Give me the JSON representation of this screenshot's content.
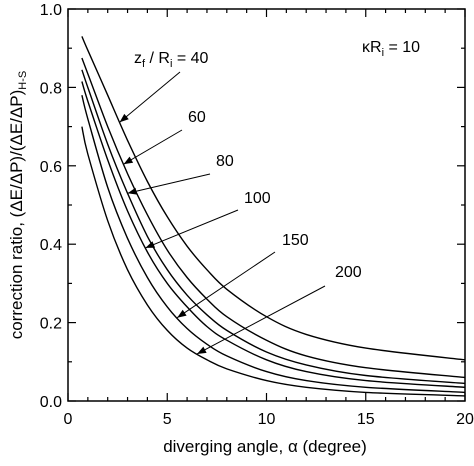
{
  "chart_data": {
    "type": "line",
    "xlabel": {
      "main": "diverging angle, ",
      "greek": "α",
      "unit": " (degree)"
    },
    "ylabel": {
      "part1": "correction ratio, (ΔE/ΔP)/(ΔE/ΔP)",
      "sub": "H-S"
    },
    "xlim": [
      0,
      20
    ],
    "ylim": [
      0,
      1.0
    ],
    "xticks": [
      "0",
      "5",
      "10",
      "15",
      "20"
    ],
    "yticks": [
      "0.0",
      "0.2",
      "0.4",
      "0.6",
      "0.8",
      "1.0"
    ],
    "xtick_values": [
      0,
      5,
      10,
      15,
      20
    ],
    "ytick_values": [
      0,
      0.2,
      0.4,
      0.6,
      0.8,
      1.0
    ],
    "grid": false,
    "parameter": {
      "kappa": "κ",
      "R": "R",
      "sub": "i",
      "rest": " = 10"
    },
    "series": [
      {
        "name": "40",
        "x": [
          0.7,
          1,
          2,
          3,
          4,
          5,
          6,
          7,
          8,
          10,
          12,
          15,
          20
        ],
        "y": [
          0.93,
          0.895,
          0.78,
          0.665,
          0.56,
          0.47,
          0.395,
          0.335,
          0.285,
          0.215,
          0.17,
          0.135,
          0.105
        ]
      },
      {
        "name": "60",
        "x": [
          0.7,
          1,
          2,
          3,
          4,
          5,
          6,
          7,
          8,
          10,
          12,
          15,
          20
        ],
        "y": [
          0.875,
          0.835,
          0.7,
          0.58,
          0.475,
          0.385,
          0.315,
          0.26,
          0.215,
          0.155,
          0.115,
          0.085,
          0.06
        ]
      },
      {
        "name": "80",
        "x": [
          0.7,
          1,
          2,
          3,
          4,
          5,
          6,
          7,
          8,
          10,
          12,
          15,
          20
        ],
        "y": [
          0.845,
          0.8,
          0.655,
          0.53,
          0.42,
          0.335,
          0.27,
          0.22,
          0.18,
          0.125,
          0.092,
          0.065,
          0.045
        ]
      },
      {
        "name": "100",
        "x": [
          0.7,
          1,
          2,
          3,
          4,
          5,
          6,
          7,
          8,
          10,
          12,
          15,
          20
        ],
        "y": [
          0.815,
          0.765,
          0.615,
          0.485,
          0.38,
          0.3,
          0.24,
          0.19,
          0.155,
          0.105,
          0.075,
          0.052,
          0.035
        ]
      },
      {
        "name": "150",
        "x": [
          0.7,
          1,
          2,
          3,
          4,
          5,
          6,
          7,
          8,
          10,
          12,
          15,
          20
        ],
        "y": [
          0.78,
          0.72,
          0.545,
          0.415,
          0.315,
          0.24,
          0.185,
          0.145,
          0.115,
          0.075,
          0.052,
          0.035,
          0.022
        ]
      },
      {
        "name": "200",
        "x": [
          0.7,
          1,
          2,
          3,
          4,
          5,
          6,
          7,
          8,
          10,
          12,
          15,
          20
        ],
        "y": [
          0.7,
          0.63,
          0.46,
          0.335,
          0.245,
          0.18,
          0.135,
          0.105,
          0.082,
          0.052,
          0.035,
          0.022,
          0.013
        ]
      }
    ],
    "annotations": {
      "first_label": {
        "z": "z",
        "zsub": "f",
        "mid": " / R",
        "rsub": "i",
        "eq": " = 40"
      },
      "others": [
        "60",
        "80",
        "100",
        "150",
        "200"
      ]
    }
  }
}
